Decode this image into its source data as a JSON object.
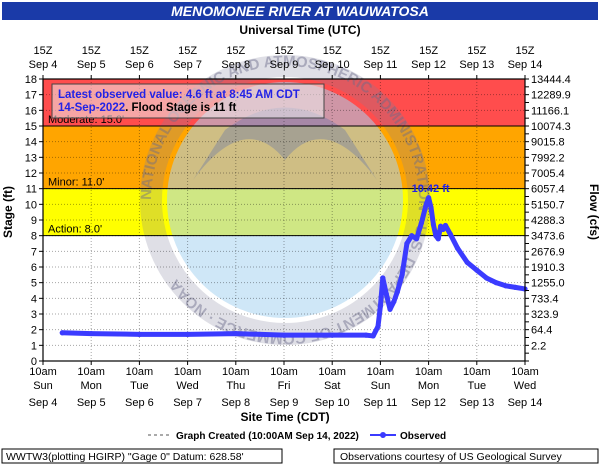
{
  "chart_data": {
    "type": "line",
    "title": "MENOMONEE RIVER AT WAUWATOSA",
    "top_axis_title": "Universal Time (UTC)",
    "xlabel": "Site Time (CDT)",
    "ylabel": "Stage (ft)",
    "y2label": "Flow (cfs)",
    "ylim": [
      0,
      18
    ],
    "y_ticks": [
      0,
      1,
      2,
      3,
      4,
      5,
      6,
      7,
      8,
      9,
      10,
      11,
      12,
      13,
      14,
      15,
      16,
      17,
      18
    ],
    "right_ticks": [
      "",
      "",
      "2.2",
      "",
      "64.4",
      "",
      "323.9",
      "",
      "733.4",
      "",
      "1255.0",
      "",
      "1910.3",
      "",
      "2676.9",
      "",
      "3473.6",
      "",
      "4288.3",
      "",
      "5150.7",
      "",
      "6057.4",
      "",
      "7005.4",
      "",
      "7992.2",
      "",
      "9015.8",
      "",
      "10074.3",
      "",
      "11166.1",
      "",
      "12289.9",
      "",
      "13444.4"
    ],
    "x_ticks_top": [
      {
        "hour": "15Z",
        "date": "Sep 4"
      },
      {
        "hour": "15Z",
        "date": "Sep 5"
      },
      {
        "hour": "15Z",
        "date": "Sep 6"
      },
      {
        "hour": "15Z",
        "date": "Sep 7"
      },
      {
        "hour": "15Z",
        "date": "Sep 8"
      },
      {
        "hour": "15Z",
        "date": "Sep 9"
      },
      {
        "hour": "15Z",
        "date": "Sep 10"
      },
      {
        "hour": "15Z",
        "date": "Sep 11"
      },
      {
        "hour": "15Z",
        "date": "Sep 12"
      },
      {
        "hour": "15Z",
        "date": "Sep 13"
      },
      {
        "hour": "15Z",
        "date": "Sep 14"
      }
    ],
    "x_ticks_bottom": [
      {
        "time": "10am",
        "day": "Sun",
        "date": "Sep 4"
      },
      {
        "time": "10am",
        "day": "Mon",
        "date": "Sep 5"
      },
      {
        "time": "10am",
        "day": "Tue",
        "date": "Sep 6"
      },
      {
        "time": "10am",
        "day": "Wed",
        "date": "Sep 7"
      },
      {
        "time": "10am",
        "day": "Thu",
        "date": "Sep 8"
      },
      {
        "time": "10am",
        "day": "Fri",
        "date": "Sep 9"
      },
      {
        "time": "10am",
        "day": "Sat",
        "date": "Sep 10"
      },
      {
        "time": "10am",
        "day": "Sun",
        "date": "Sep 11"
      },
      {
        "time": "10am",
        "day": "Mon",
        "date": "Sep 12"
      },
      {
        "time": "10am",
        "day": "Tue",
        "date": "Sep 13"
      },
      {
        "time": "10am",
        "day": "Wed",
        "date": "Sep 14"
      }
    ],
    "flood_bands": [
      {
        "from": 0,
        "to": 8,
        "color": "#ffffff",
        "label": ""
      },
      {
        "from": 8,
        "to": 11,
        "color": "#ffff00",
        "label": "Action: 8.0'"
      },
      {
        "from": 11,
        "to": 15,
        "color": "#ffa500",
        "label": "Minor: 11.0'"
      },
      {
        "from": 15,
        "to": 18,
        "color": "#ff4d4d",
        "label": "Moderate: 15.0'"
      }
    ],
    "series": [
      {
        "name": "Observed",
        "color": "#3b3bff",
        "x_unit": "days from Sun Sep 4 10am CDT",
        "x": [
          0.4,
          1.0,
          2.0,
          3.0,
          4.0,
          5.0,
          6.0,
          6.7,
          6.85,
          6.95,
          7.0,
          7.05,
          7.12,
          7.2,
          7.28,
          7.35,
          7.45,
          7.55,
          7.65,
          7.75,
          7.85,
          7.95,
          8.0,
          8.05,
          8.1,
          8.15,
          8.2,
          8.25,
          8.3,
          8.35,
          8.45,
          8.6,
          8.8,
          9.0,
          9.2,
          9.4,
          9.6,
          9.8,
          10.0
        ],
        "y": [
          1.8,
          1.75,
          1.7,
          1.7,
          1.75,
          1.65,
          1.65,
          1.65,
          1.6,
          2.2,
          3.5,
          5.3,
          4.3,
          3.3,
          3.8,
          4.4,
          5.5,
          7.5,
          8.0,
          7.8,
          8.8,
          10.0,
          10.42,
          9.8,
          8.7,
          8.0,
          7.8,
          8.6,
          8.4,
          8.65,
          8.1,
          7.2,
          6.3,
          5.8,
          5.3,
          5.0,
          4.8,
          4.7,
          4.6
        ]
      }
    ],
    "peak_annotation": {
      "x": 8.0,
      "y": 10.42,
      "text": "10.42 ft"
    },
    "latest_observation": {
      "line1": "Latest observed value: 4.6 ft at 8:45 AM CDT",
      "line2": "14-Sep-2022",
      "line2_suffix": ". Flood Stage is 11 ft"
    },
    "watermark_text": "NATIONAL OCEANIC AND ATMOSPHERIC ADMINISTRATION · U.S. DEPARTMENT OF COMMERCE · NOAA",
    "legend": {
      "graph_created": "Graph Created (10:00AM Sep 14, 2022)",
      "observed": "Observed"
    },
    "footer_left": "WWTW3(plotting HGIRP) \"Gage 0\" Datum: 628.58'",
    "footer_right": "Observations courtesy of US Geological Survey"
  }
}
